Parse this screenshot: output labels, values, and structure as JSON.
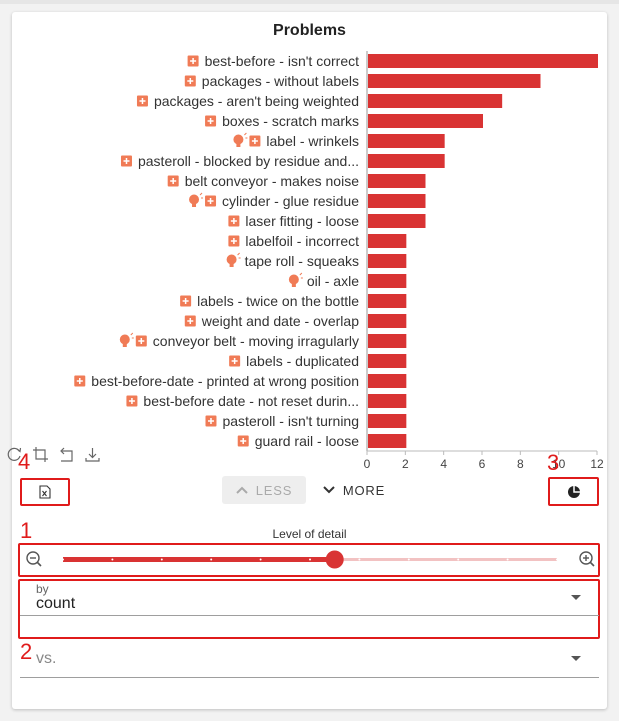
{
  "panel": {
    "title": "Problems"
  },
  "chart_data": {
    "type": "bar",
    "orientation": "horizontal",
    "title": "Problems",
    "xlim": [
      0,
      12
    ],
    "x_ticks": [
      "0",
      "2",
      "4",
      "6",
      "8",
      "10",
      "12"
    ],
    "bar_color": "#d93333",
    "categories": [
      "best-before - isn't correct",
      "packages - without labels",
      "packages - aren't being weighted",
      "boxes - scratch marks",
      "label - wrinkels",
      "pasteroll - blocked by residue and...",
      "belt conveyor - makes noise",
      "cylinder - glue residue",
      "laser fitting - loose",
      "labelfoil - incorrect",
      "tape roll - squeaks",
      "oil - axle",
      "labels - twice on the bottle",
      "weight and date - overlap",
      "conveyor belt - moving irragularly",
      "labels - duplicated",
      "best-before-date - printed at wrong position",
      "best-before date - not reset durin...",
      "pasteroll - isn't turning",
      "guard rail - loose"
    ],
    "values": [
      12,
      9,
      7,
      6,
      4,
      4,
      3,
      3,
      3,
      2,
      2,
      2,
      2,
      2,
      2,
      2,
      2,
      2,
      2,
      2
    ],
    "plus_icon": [
      true,
      true,
      true,
      true,
      true,
      true,
      true,
      true,
      true,
      true,
      false,
      false,
      true,
      true,
      true,
      true,
      true,
      true,
      true,
      true
    ],
    "bulb_icon": [
      false,
      false,
      false,
      false,
      true,
      false,
      false,
      true,
      false,
      false,
      true,
      true,
      false,
      false,
      true,
      false,
      false,
      false,
      false,
      false
    ],
    "icon_color": "#f07b56"
  },
  "toolbar": {
    "icons": [
      "reset-zoom-icon",
      "crop-icon",
      "undo-icon",
      "download-icon"
    ]
  },
  "buttons": {
    "less_label": "LESS",
    "more_label": "MORE"
  },
  "annotations": {
    "n1": "1",
    "n2": "2",
    "n3": "3",
    "n4": "4",
    "color": "#e01b1b"
  },
  "level_of_detail": {
    "label": "Level of detail",
    "value": 0.55,
    "steps": 11
  },
  "by_field": {
    "label": "by",
    "value": "count"
  },
  "vs_field": {
    "placeholder": "vs."
  }
}
